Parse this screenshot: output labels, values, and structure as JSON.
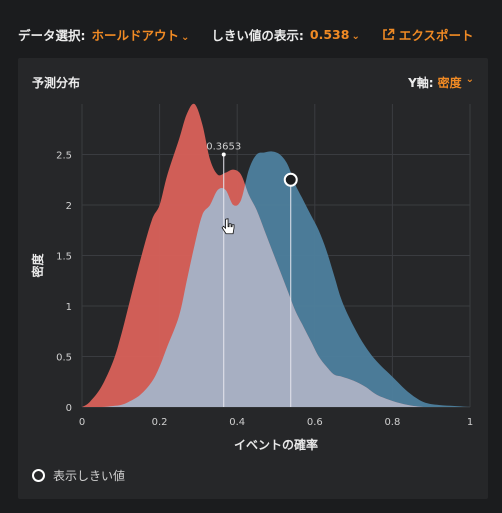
{
  "toolbar": {
    "data_selection_label": "データ選択:",
    "data_selection_value": "ホールドアウト",
    "threshold_label": "しきい値の表示:",
    "threshold_value": "0.538",
    "export_label": "エクスポート"
  },
  "panel": {
    "title": "予測分布",
    "yaxis_label": "Y軸:",
    "yaxis_value": "密度"
  },
  "legend": {
    "label": "表示しきい値"
  },
  "colors": {
    "accent": "#f08a24",
    "red_series": "#d9615a",
    "blue_series": "#4d7f9e",
    "overlap": "#a7afc2"
  },
  "chart_data": {
    "type": "area",
    "xlabel": "イベントの確率",
    "ylabel": "密度",
    "xlim": [
      0,
      1
    ],
    "ylim": [
      0,
      3
    ],
    "x_ticks": [
      "0",
      "0.2",
      "0.4",
      "0.6",
      "0.8",
      "1"
    ],
    "y_ticks": [
      "0",
      "0.5",
      "1",
      "1.5",
      "2",
      "2.5"
    ],
    "x": [
      0,
      0.02,
      0.05,
      0.08,
      0.1,
      0.12,
      0.15,
      0.18,
      0.2,
      0.22,
      0.25,
      0.27,
      0.29,
      0.31,
      0.33,
      0.35,
      0.37,
      0.39,
      0.41,
      0.43,
      0.45,
      0.47,
      0.49,
      0.51,
      0.53,
      0.55,
      0.57,
      0.59,
      0.61,
      0.63,
      0.65,
      0.67,
      0.7,
      0.73,
      0.76,
      0.8,
      0.84,
      0.88,
      0.92,
      0.96,
      1.0
    ],
    "series": [
      {
        "values": [
          0,
          0.05,
          0.2,
          0.45,
          0.7,
          1.0,
          1.45,
          1.85,
          2.0,
          2.3,
          2.65,
          2.9,
          3.0,
          2.8,
          2.45,
          2.3,
          2.32,
          2.35,
          2.3,
          2.1,
          1.95,
          1.75,
          1.55,
          1.35,
          1.15,
          0.95,
          0.8,
          0.65,
          0.5,
          0.4,
          0.32,
          0.3,
          0.26,
          0.2,
          0.12,
          0.06,
          0.02,
          0,
          0,
          0,
          0
        ]
      },
      {
        "values": [
          0,
          0,
          0,
          0.01,
          0.02,
          0.05,
          0.12,
          0.25,
          0.4,
          0.6,
          0.9,
          1.25,
          1.6,
          1.9,
          2.0,
          2.15,
          2.15,
          2.0,
          2.05,
          2.35,
          2.5,
          2.52,
          2.53,
          2.5,
          2.4,
          2.2,
          2.05,
          1.9,
          1.75,
          1.55,
          1.3,
          1.05,
          0.8,
          0.6,
          0.45,
          0.3,
          0.15,
          0.05,
          0.02,
          0.01,
          0
        ]
      }
    ],
    "annotations": [
      {
        "x": 0.3653,
        "label": "0.3653"
      }
    ],
    "threshold": 0.538,
    "grid": true
  }
}
